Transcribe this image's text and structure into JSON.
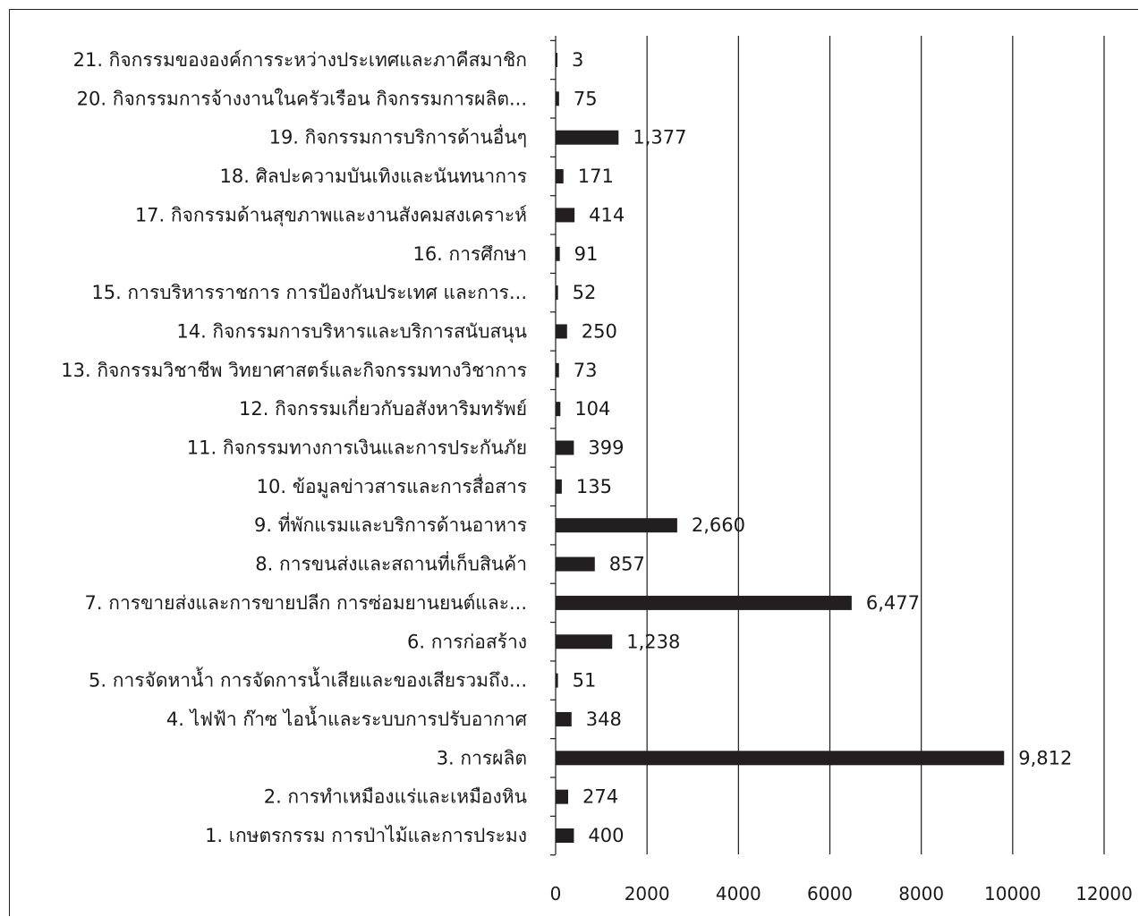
{
  "chart_data": {
    "type": "bar",
    "orientation": "horizontal",
    "categories": [
      "1. เกษตรกรรม การป่าไม้และการประมง",
      "2. การทำเหมืองแร่และเหมืองหิน",
      "3. การผลิต",
      "4. ไฟฟ้า ก๊าซ ไอน้ำและระบบการปรับอากาศ",
      "5. การจัดหาน้ำ การจัดการน้ำเสียและของเสียรวมถึง...",
      "6. การก่อสร้าง",
      "7. การขายส่งและการขายปลีก การซ่อมยานยนต์และ...",
      "8. การขนส่งและสถานที่เก็บสินค้า",
      "9. ที่พักแรมและบริการด้านอาหาร",
      "10. ข้อมูลข่าวสารและการสื่อสาร",
      "11. กิจกรรมทางการเงินและการประกันภัย",
      "12. กิจกรรมเกี่ยวกับอสังหาริมทรัพย์",
      "13. กิจกรรมวิชาชีพ วิทยาศาสตร์และกิจกรรมทางวิชาการ",
      "14. กิจกรรมการบริหารและบริการสนับสนุน",
      "15. การบริหารราชการ  การป้องกันประเทศ  และการ...",
      "16. การศึกษา",
      "17. กิจกรรมด้านสุขภาพและงานสังคมสงเคราะห์",
      "18. ศิลปะความบันเทิงและนันทนาการ",
      "19. กิจกรรมการบริการด้านอื่นๆ",
      "20. กิจกรรมการจ้างงานในครัวเรือน กิจกรรมการผลิต...",
      "21. กิจกรรมขององค์การระหว่างประเทศและภาคีสมาชิก"
    ],
    "values": [
      400,
      274,
      9812,
      348,
      51,
      1238,
      6477,
      857,
      2660,
      135,
      399,
      104,
      73,
      250,
      52,
      91,
      414,
      171,
      1377,
      75,
      3
    ],
    "value_labels": [
      "400",
      "274",
      "9,812",
      "348",
      "51",
      "1,238",
      "6,477",
      "857",
      "2,660",
      "135",
      "399",
      "104",
      "73",
      "250",
      "52",
      "91",
      "414",
      "171",
      "1,377",
      "75",
      "3"
    ],
    "x_ticks": [
      0,
      2000,
      4000,
      6000,
      8000,
      10000,
      12000
    ],
    "x_tick_labels": [
      "0",
      "2000",
      "4000",
      "6000",
      "8000",
      "10000",
      "12000"
    ],
    "xlim": [
      0,
      12000
    ],
    "title": "",
    "xlabel": "",
    "ylabel": "",
    "grid": "vertical",
    "legend": "none",
    "colors": {
      "bar": "#231f20",
      "grid": "#1a1a1a",
      "text": "#1a1a1a"
    }
  }
}
